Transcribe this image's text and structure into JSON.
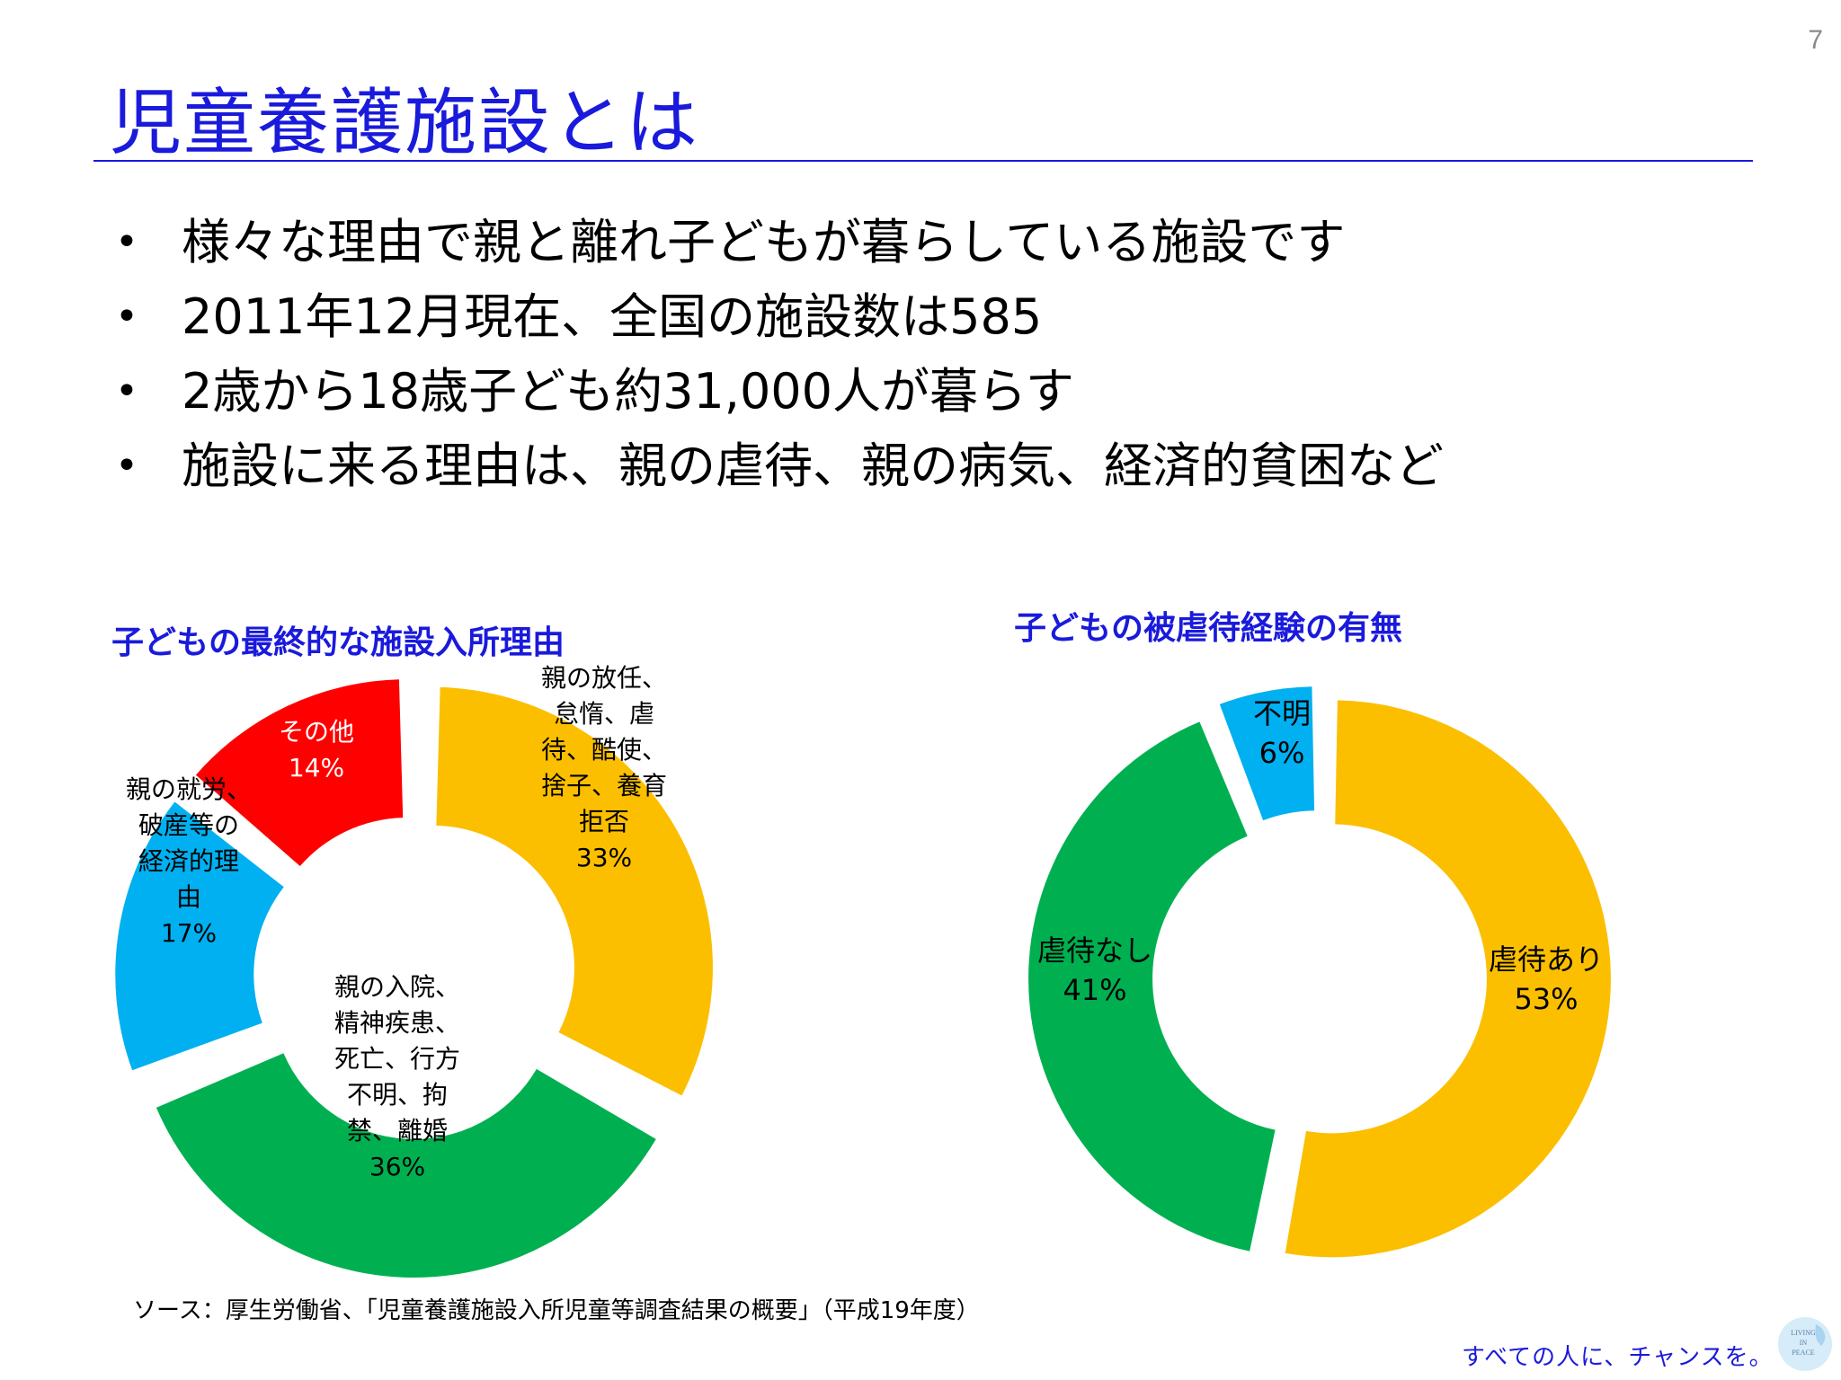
{
  "slide": {
    "page_number": "7",
    "title": "児童養護施設とは",
    "bullets": [
      "様々な理由で親と離れ子どもが暮らしている施設です",
      "2011年12月現在、全国の施設数は585",
      "2歳から18歳子ども約31,000人が暮らす",
      "施設に来る理由は、親の虐待、親の病気、経済的貧困など"
    ],
    "bullet_symbol": "•",
    "source": "ソース：厚生労働省、「児童養護施設入所児童等調査結果の概要」（平成19年度）",
    "footer_tagline": "すべての人に、チャンスを。",
    "logo_text": [
      "LIVING",
      "IN",
      "PEACE"
    ]
  },
  "colors": {
    "accent": "#1a1adc",
    "yellow": "#fbbf00",
    "green": "#00b050",
    "blue": "#00b0f0",
    "red": "#ff0000"
  },
  "chart_data": [
    {
      "type": "pie",
      "donut": true,
      "title": "子どもの最終的な施設入所理由",
      "segments": [
        {
          "label": "親の放任、怠惰、虐待、酷使、捨子、養育拒否",
          "label_lines": [
            "親の放任、",
            "怠惰、虐",
            "待、酷使、",
            "捨子、養育",
            "拒否"
          ],
          "value": 33,
          "value_label": "33%",
          "color": "#fbbf00"
        },
        {
          "label": "親の入院、精神疾患、死亡、行方不明、拘禁、離婚",
          "label_lines": [
            "親の入院、",
            "精神疾患、",
            "死亡、行方",
            "不明、拘",
            "禁、離婚"
          ],
          "value": 36,
          "value_label": "36%",
          "color": "#00b050"
        },
        {
          "label": "親の就労、破産等の経済的理由",
          "label_lines": [
            "親の就労、",
            "破産等の",
            "経済的理",
            "由"
          ],
          "value": 17,
          "value_label": "17%",
          "color": "#00b0f0"
        },
        {
          "label": "その他",
          "label_lines": [
            "その他"
          ],
          "value": 14,
          "value_label": "14%",
          "color": "#ff0000"
        }
      ]
    },
    {
      "type": "pie",
      "donut": true,
      "title": "子どもの被虐待経験の有無",
      "segments": [
        {
          "label": "虐待あり",
          "label_lines": [
            "虐待あり"
          ],
          "value": 53,
          "value_label": "53%",
          "color": "#fbbf00"
        },
        {
          "label": "虐待なし",
          "label_lines": [
            "虐待なし"
          ],
          "value": 41,
          "value_label": "41%",
          "color": "#00b050"
        },
        {
          "label": "不明",
          "label_lines": [
            "不明"
          ],
          "value": 6,
          "value_label": "6%",
          "color": "#00b0f0"
        }
      ]
    }
  ]
}
